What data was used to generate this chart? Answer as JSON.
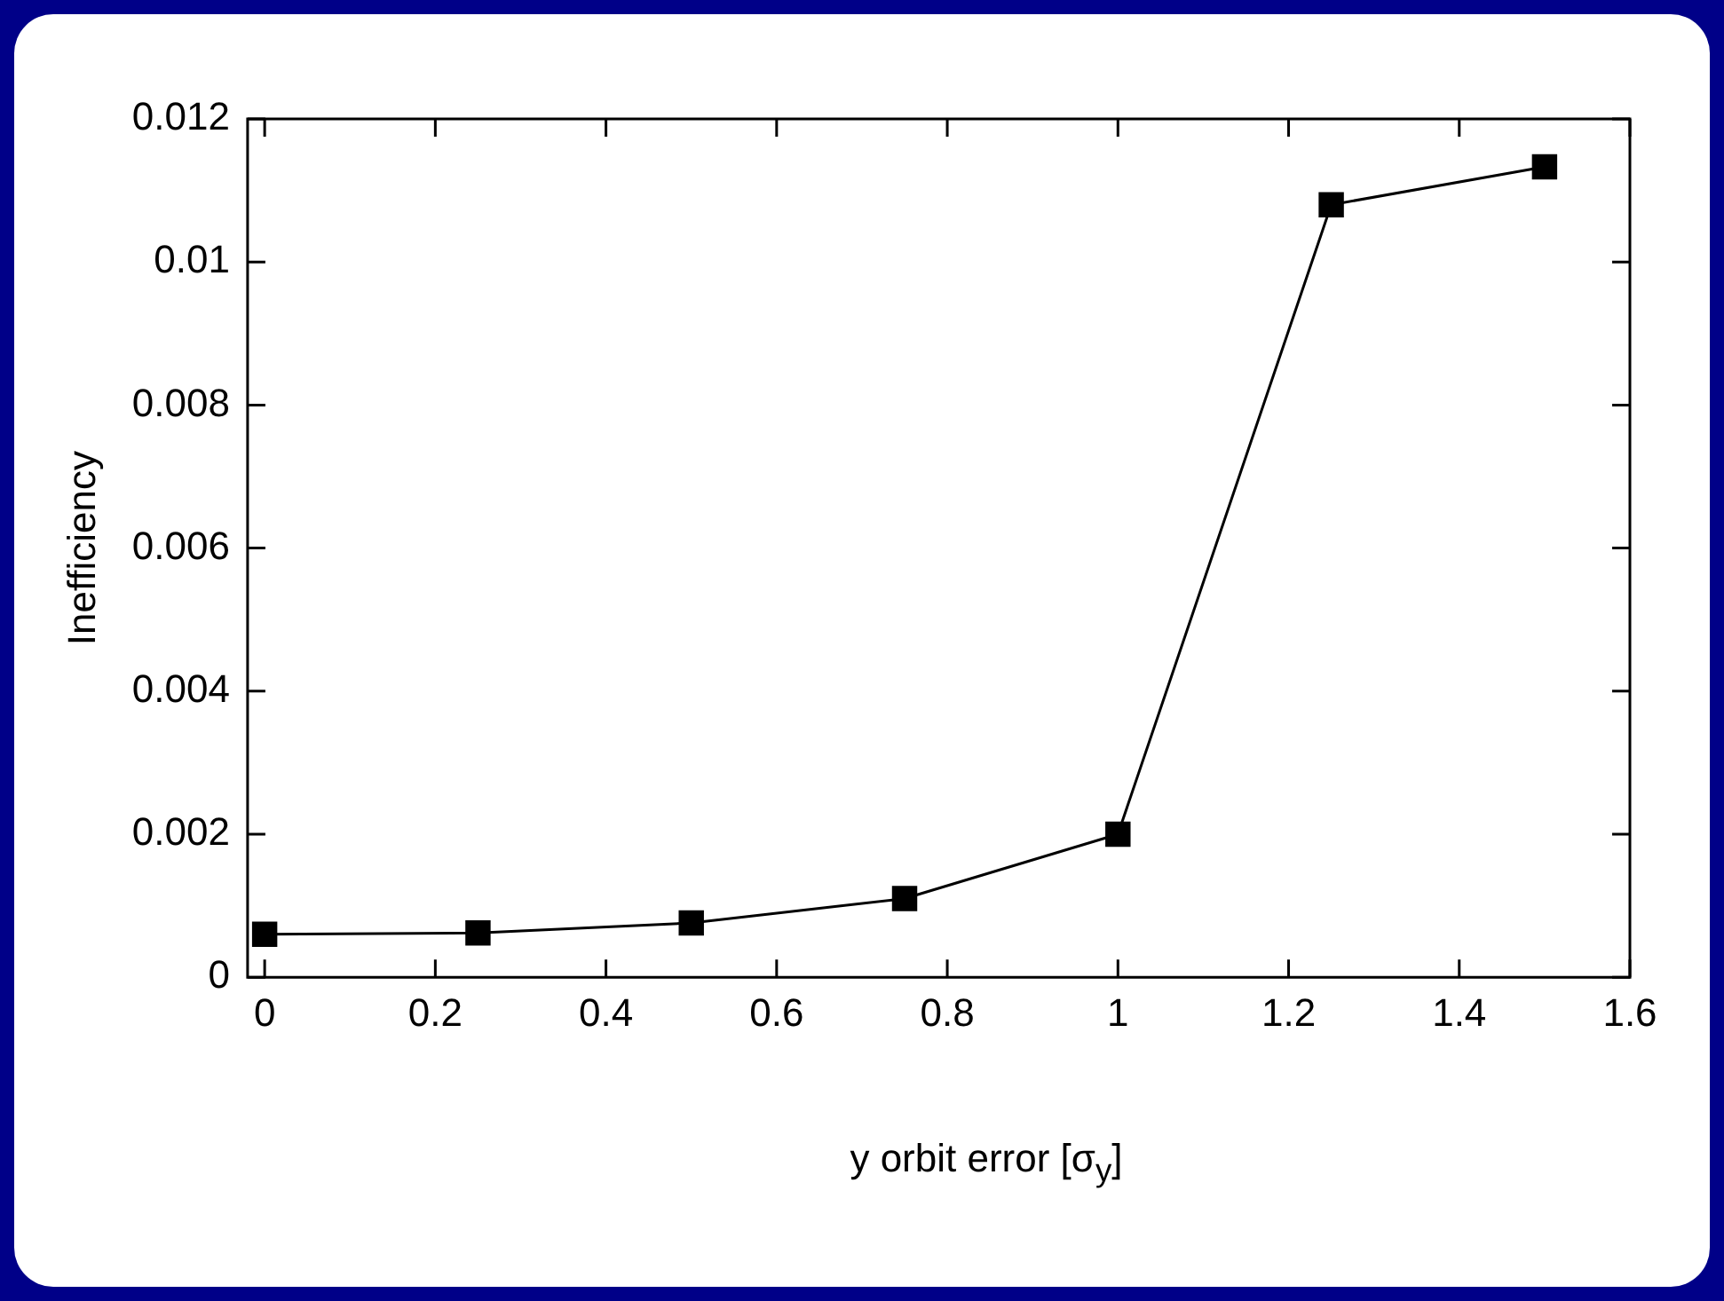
{
  "chart_data": {
    "type": "line",
    "xlabel": "y orbit error [σ$_{y}$]",
    "ylabel": "Inefficiency",
    "x": [
      0,
      0.25,
      0.5,
      0.75,
      1,
      1.25,
      1.5
    ],
    "series": [
      {
        "color": "#000000",
        "values": [
          0.0006,
          0.00062,
          0.00076,
          0.0011,
          0.002,
          0.0108,
          0.01133
        ]
      }
    ],
    "xlim": [
      -0.02,
      1.6
    ],
    "xticks": [
      0,
      0.2,
      0.4,
      0.6,
      0.8,
      1,
      1.2,
      1.4,
      1.6
    ],
    "ylim": [
      0,
      0.012
    ],
    "yticks": [
      0,
      0.002,
      0.004,
      0.006,
      0.008,
      0.01,
      0.012
    ],
    "grid": false,
    "legend": false,
    "marker": "square",
    "line_style": "solid"
  }
}
